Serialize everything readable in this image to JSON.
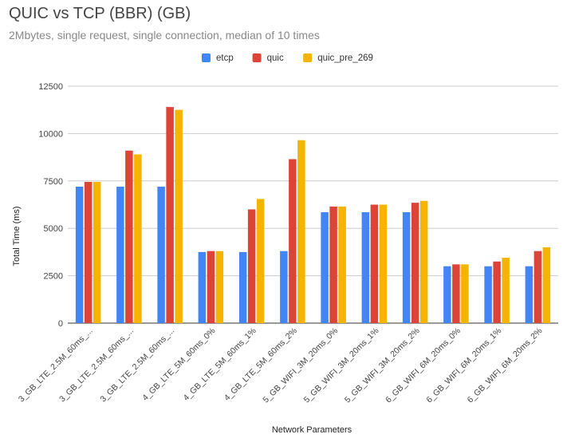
{
  "chart_data": {
    "type": "bar",
    "title": "QUIC vs TCP (BBR) (GB)",
    "subtitle": "2Mbytes, single request, single connection, median of 10 times",
    "xlabel": "Network Parameters",
    "ylabel": "Total Time (ms)",
    "ylim": [
      0,
      12500
    ],
    "yticks": [
      0,
      2500,
      5000,
      7500,
      10000,
      12500
    ],
    "grid": true,
    "legend_position": "top",
    "categories": [
      "3_GB_LTE_2.5M_60ms_...",
      "3_GB_LTE_2.5M_60ms_...",
      "3_GB_LTE_2.5M_60ms_...",
      "4_GB_LTE_5M_60ms_0%",
      "4_GB_LTE_5M_60ms_1%",
      "4_GB_LTE_5M_60ms_2%",
      "5_GB_WIFI_3M_20ms_0%",
      "5_GB_WIFI_3M_20ms_1%",
      "5_GB_WIFI_3M_20ms_2%",
      "6_GB_WIFI_6M_20ms_0%",
      "6_GB_WIFI_6M_20ms_1%",
      "6_GB_WIFI_6M_20ms_2%"
    ],
    "series": [
      {
        "name": "etcp",
        "color": "#4285f4",
        "values": [
          7200,
          7200,
          7200,
          3750,
          3750,
          3800,
          5850,
          5850,
          5850,
          3000,
          3000,
          3000
        ]
      },
      {
        "name": "quic",
        "color": "#db4437",
        "values": [
          7450,
          9100,
          11400,
          3800,
          6000,
          8650,
          6150,
          6250,
          6350,
          3100,
          3250,
          3800
        ]
      },
      {
        "name": "quic_pre_269",
        "color": "#f4b400",
        "values": [
          7450,
          8900,
          11250,
          3800,
          6550,
          9650,
          6150,
          6250,
          6450,
          3100,
          3450,
          4000
        ]
      }
    ]
  }
}
